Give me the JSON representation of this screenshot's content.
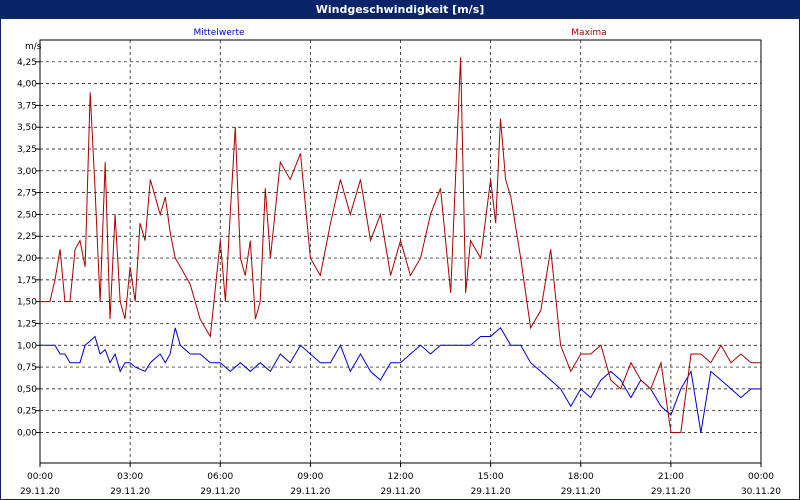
{
  "window": {
    "title": "Windgeschwindigkeit [m/s]"
  },
  "chart_data": {
    "type": "line",
    "title": "Windgeschwindigkeit [m/s]",
    "ylabel": "m/s",
    "xlabel": "",
    "ylim": [
      -0.35,
      4.5
    ],
    "y_ticks": [
      "0,00",
      "0,25",
      "0,50",
      "0,75",
      "1,00",
      "1,25",
      "1,50",
      "1,75",
      "2,00",
      "2,25",
      "2,50",
      "2,75",
      "3,00",
      "3,25",
      "3,50",
      "3,75",
      "4,00",
      "4,25"
    ],
    "x_ticks": [
      {
        "time": "00:00",
        "date": "29.11.20"
      },
      {
        "time": "03:00",
        "date": "29.11.20"
      },
      {
        "time": "06:00",
        "date": "29.11.20"
      },
      {
        "time": "09:00",
        "date": "29.11.20"
      },
      {
        "time": "12:00",
        "date": "29.11.20"
      },
      {
        "time": "15:00",
        "date": "29.11.20"
      },
      {
        "time": "18:00",
        "date": "29.11.20"
      },
      {
        "time": "21:00",
        "date": "29.11.20"
      },
      {
        "time": "00:00",
        "date": "30.11.20"
      }
    ],
    "x_unit": "hours since 29.11.20 00:00",
    "xlim": [
      0,
      24
    ],
    "grid": true,
    "legend": "top",
    "series": [
      {
        "name": "Mittelwerte",
        "color": "#0000cc",
        "x": [
          0,
          0.5,
          0.67,
          0.83,
          1.0,
          1.33,
          1.5,
          1.67,
          1.83,
          2.0,
          2.17,
          2.33,
          2.5,
          2.67,
          2.83,
          3.0,
          3.17,
          3.5,
          3.67,
          4.0,
          4.17,
          4.33,
          4.5,
          4.67,
          5.0,
          5.33,
          5.67,
          6.0,
          6.33,
          6.67,
          7.0,
          7.33,
          7.67,
          8.0,
          8.33,
          8.67,
          9.0,
          9.33,
          9.67,
          10.0,
          10.33,
          10.67,
          11.0,
          11.33,
          11.67,
          12.0,
          12.33,
          12.67,
          13.0,
          13.33,
          13.67,
          14.0,
          14.33,
          14.67,
          15.0,
          15.33,
          15.67,
          16.0,
          16.33,
          16.67,
          17.0,
          17.33,
          17.67,
          18.0,
          18.33,
          18.67,
          19.0,
          19.33,
          19.67,
          20.0,
          20.33,
          20.67,
          21.0,
          21.33,
          21.67,
          22.0,
          22.33,
          22.67,
          23.0,
          23.33,
          23.67,
          24.0
        ],
        "y": [
          1.0,
          1.0,
          0.9,
          0.9,
          0.8,
          0.8,
          1.0,
          1.05,
          1.1,
          0.9,
          0.95,
          0.8,
          0.9,
          0.7,
          0.8,
          0.8,
          0.75,
          0.7,
          0.8,
          0.9,
          0.8,
          0.9,
          1.2,
          1.0,
          0.9,
          0.9,
          0.8,
          0.8,
          0.7,
          0.8,
          0.7,
          0.8,
          0.7,
          0.9,
          0.8,
          1.0,
          0.9,
          0.8,
          0.8,
          1.0,
          0.7,
          0.9,
          0.7,
          0.6,
          0.8,
          0.8,
          0.9,
          1.0,
          0.9,
          1.0,
          1.0,
          1.0,
          1.0,
          1.1,
          1.1,
          1.2,
          1.0,
          1.0,
          0.8,
          0.7,
          0.6,
          0.5,
          0.3,
          0.5,
          0.4,
          0.6,
          0.7,
          0.6,
          0.4,
          0.6,
          0.5,
          0.3,
          0.2,
          0.5,
          0.7,
          0.0,
          0.7,
          0.6,
          0.5,
          0.4,
          0.5,
          0.5
        ]
      },
      {
        "name": "Maxima",
        "color": "#aa0000",
        "x": [
          0,
          0.33,
          0.5,
          0.67,
          0.83,
          1.0,
          1.17,
          1.33,
          1.5,
          1.67,
          1.83,
          2.0,
          2.17,
          2.33,
          2.5,
          2.67,
          2.83,
          3.0,
          3.17,
          3.33,
          3.5,
          3.67,
          4.0,
          4.17,
          4.33,
          4.5,
          4.67,
          5.0,
          5.33,
          5.67,
          6.0,
          6.17,
          6.33,
          6.5,
          6.67,
          6.83,
          7.0,
          7.17,
          7.33,
          7.5,
          7.67,
          8.0,
          8.33,
          8.67,
          9.0,
          9.33,
          9.67,
          10.0,
          10.33,
          10.67,
          11.0,
          11.33,
          11.67,
          12.0,
          12.33,
          12.67,
          13.0,
          13.33,
          13.67,
          14.0,
          14.17,
          14.33,
          14.67,
          15.0,
          15.17,
          15.33,
          15.5,
          15.67,
          16.0,
          16.33,
          16.67,
          17.0,
          17.33,
          17.67,
          18.0,
          18.33,
          18.67,
          19.0,
          19.33,
          19.67,
          20.0,
          20.33,
          20.67,
          21.0,
          21.33,
          21.67,
          22.0,
          22.33,
          22.67,
          23.0,
          23.33,
          23.67,
          24.0
        ],
        "y": [
          1.5,
          1.5,
          1.75,
          2.1,
          1.5,
          1.5,
          2.1,
          2.2,
          1.9,
          3.9,
          2.8,
          1.5,
          3.1,
          1.3,
          2.5,
          1.5,
          1.3,
          1.9,
          1.5,
          2.4,
          2.2,
          2.9,
          2.5,
          2.7,
          2.3,
          2.0,
          1.9,
          1.7,
          1.3,
          1.1,
          2.2,
          1.5,
          2.5,
          3.5,
          2.0,
          1.8,
          2.2,
          1.3,
          1.5,
          2.8,
          2.0,
          3.1,
          2.9,
          3.2,
          2.0,
          1.8,
          2.4,
          2.9,
          2.5,
          2.9,
          2.2,
          2.5,
          1.8,
          2.2,
          1.8,
          2.0,
          2.5,
          2.8,
          1.6,
          4.3,
          1.6,
          2.2,
          2.0,
          2.9,
          2.4,
          3.6,
          2.9,
          2.7,
          2.0,
          1.2,
          1.4,
          2.1,
          1.0,
          0.7,
          0.9,
          0.9,
          1.0,
          0.6,
          0.5,
          0.8,
          0.6,
          0.5,
          0.8,
          0.0,
          0.0,
          0.9,
          0.9,
          0.8,
          1.0,
          0.8,
          0.9,
          0.8,
          0.8
        ]
      }
    ]
  }
}
